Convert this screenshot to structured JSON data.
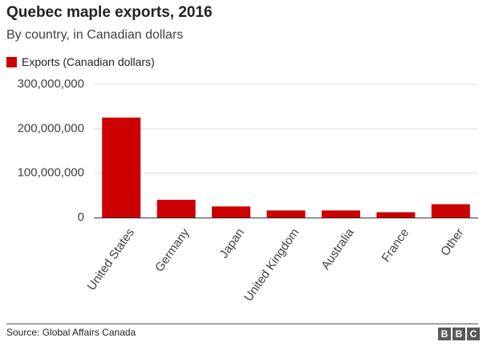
{
  "chart_data": {
    "type": "bar",
    "title": "Quebec maple exports, 2016",
    "subtitle": "By country, in Canadian dollars",
    "legend": [
      {
        "name": "Exports (Canadian dollars)",
        "color": "#cc0000"
      }
    ],
    "categories": [
      "United States",
      "Germany",
      "Japan",
      "United Kingdom",
      "Australia",
      "France",
      "Other"
    ],
    "series": [
      {
        "name": "Exports (Canadian dollars)",
        "values": [
          225000000,
          40000000,
          25000000,
          16000000,
          16000000,
          12000000,
          30000000
        ]
      }
    ],
    "yticks": [
      0,
      100000000,
      200000000,
      300000000
    ],
    "ytick_labels": [
      "0",
      "100,000,000",
      "200,000,000",
      "300,000,000"
    ],
    "ylim": [
      0,
      300000000
    ],
    "xlabel": "",
    "ylabel": "",
    "grid": true
  },
  "footer": {
    "source": "Source: Global Affairs Canada",
    "logo": [
      "B",
      "B",
      "C"
    ]
  },
  "colors": {
    "bar": "#cc0000",
    "grid": "#dddddd",
    "axis": "#333333"
  }
}
